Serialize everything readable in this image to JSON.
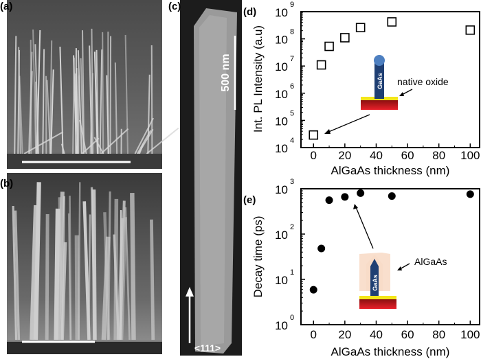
{
  "panels": {
    "a": {
      "label": "(a)"
    },
    "b": {
      "label": "(b)"
    },
    "c": {
      "label": "(c)",
      "scale_bar": "500 nm",
      "direction": "<111>"
    },
    "d": {
      "label": "(d)",
      "annotation": "native oxide",
      "wire_label": "GaAs"
    },
    "e": {
      "label": "(e)",
      "annotation": "AlGaAs",
      "wire_label": "GaAs"
    }
  },
  "colors": {
    "substrate": "#d8202a",
    "oxide": "#f4e61a",
    "wire": "#1f3f73",
    "shell": "#f8dcc8",
    "catalyst": "#4d7fc0"
  },
  "chart_data": [
    {
      "type": "scatter",
      "panel": "d",
      "marker": "open-square",
      "xlabel": "AlGaAs thickness (nm)",
      "ylabel": "Int. PL Intensity (a.u)",
      "xlim": [
        -8,
        106
      ],
      "ylim": [
        10000,
        1000000000
      ],
      "yscale": "log",
      "xticks": [
        "0",
        "20",
        "40",
        "60",
        "80",
        "100"
      ],
      "yticks": [
        {
          "base": "10",
          "exp": "4"
        },
        {
          "base": "10",
          "exp": "5"
        },
        {
          "base": "10",
          "exp": "6"
        },
        {
          "base": "10",
          "exp": "7"
        },
        {
          "base": "10",
          "exp": "8"
        },
        {
          "base": "10",
          "exp": "9"
        }
      ],
      "x": [
        0,
        5,
        10,
        20,
        30,
        50,
        100
      ],
      "y": [
        29000,
        11000000,
        53000000,
        110000000,
        260000000,
        420000000,
        210000000
      ]
    },
    {
      "type": "scatter",
      "panel": "e",
      "marker": "filled-circle",
      "xlabel": "AlGaAs thickness (nm)",
      "ylabel": "Decay time (ps)",
      "xlim": [
        -8,
        106
      ],
      "ylim": [
        1,
        1000
      ],
      "yscale": "log",
      "xticks": [
        "0",
        "20",
        "40",
        "60",
        "80",
        "100"
      ],
      "yticks": [
        {
          "base": "10",
          "exp": "0"
        },
        {
          "base": "10",
          "exp": "1"
        },
        {
          "base": "10",
          "exp": "2"
        },
        {
          "base": "10",
          "exp": "3"
        }
      ],
      "x": [
        0,
        5,
        10,
        20,
        30,
        50,
        100
      ],
      "y": [
        5.9,
        48,
        560,
        660,
        800,
        690,
        760
      ]
    }
  ]
}
